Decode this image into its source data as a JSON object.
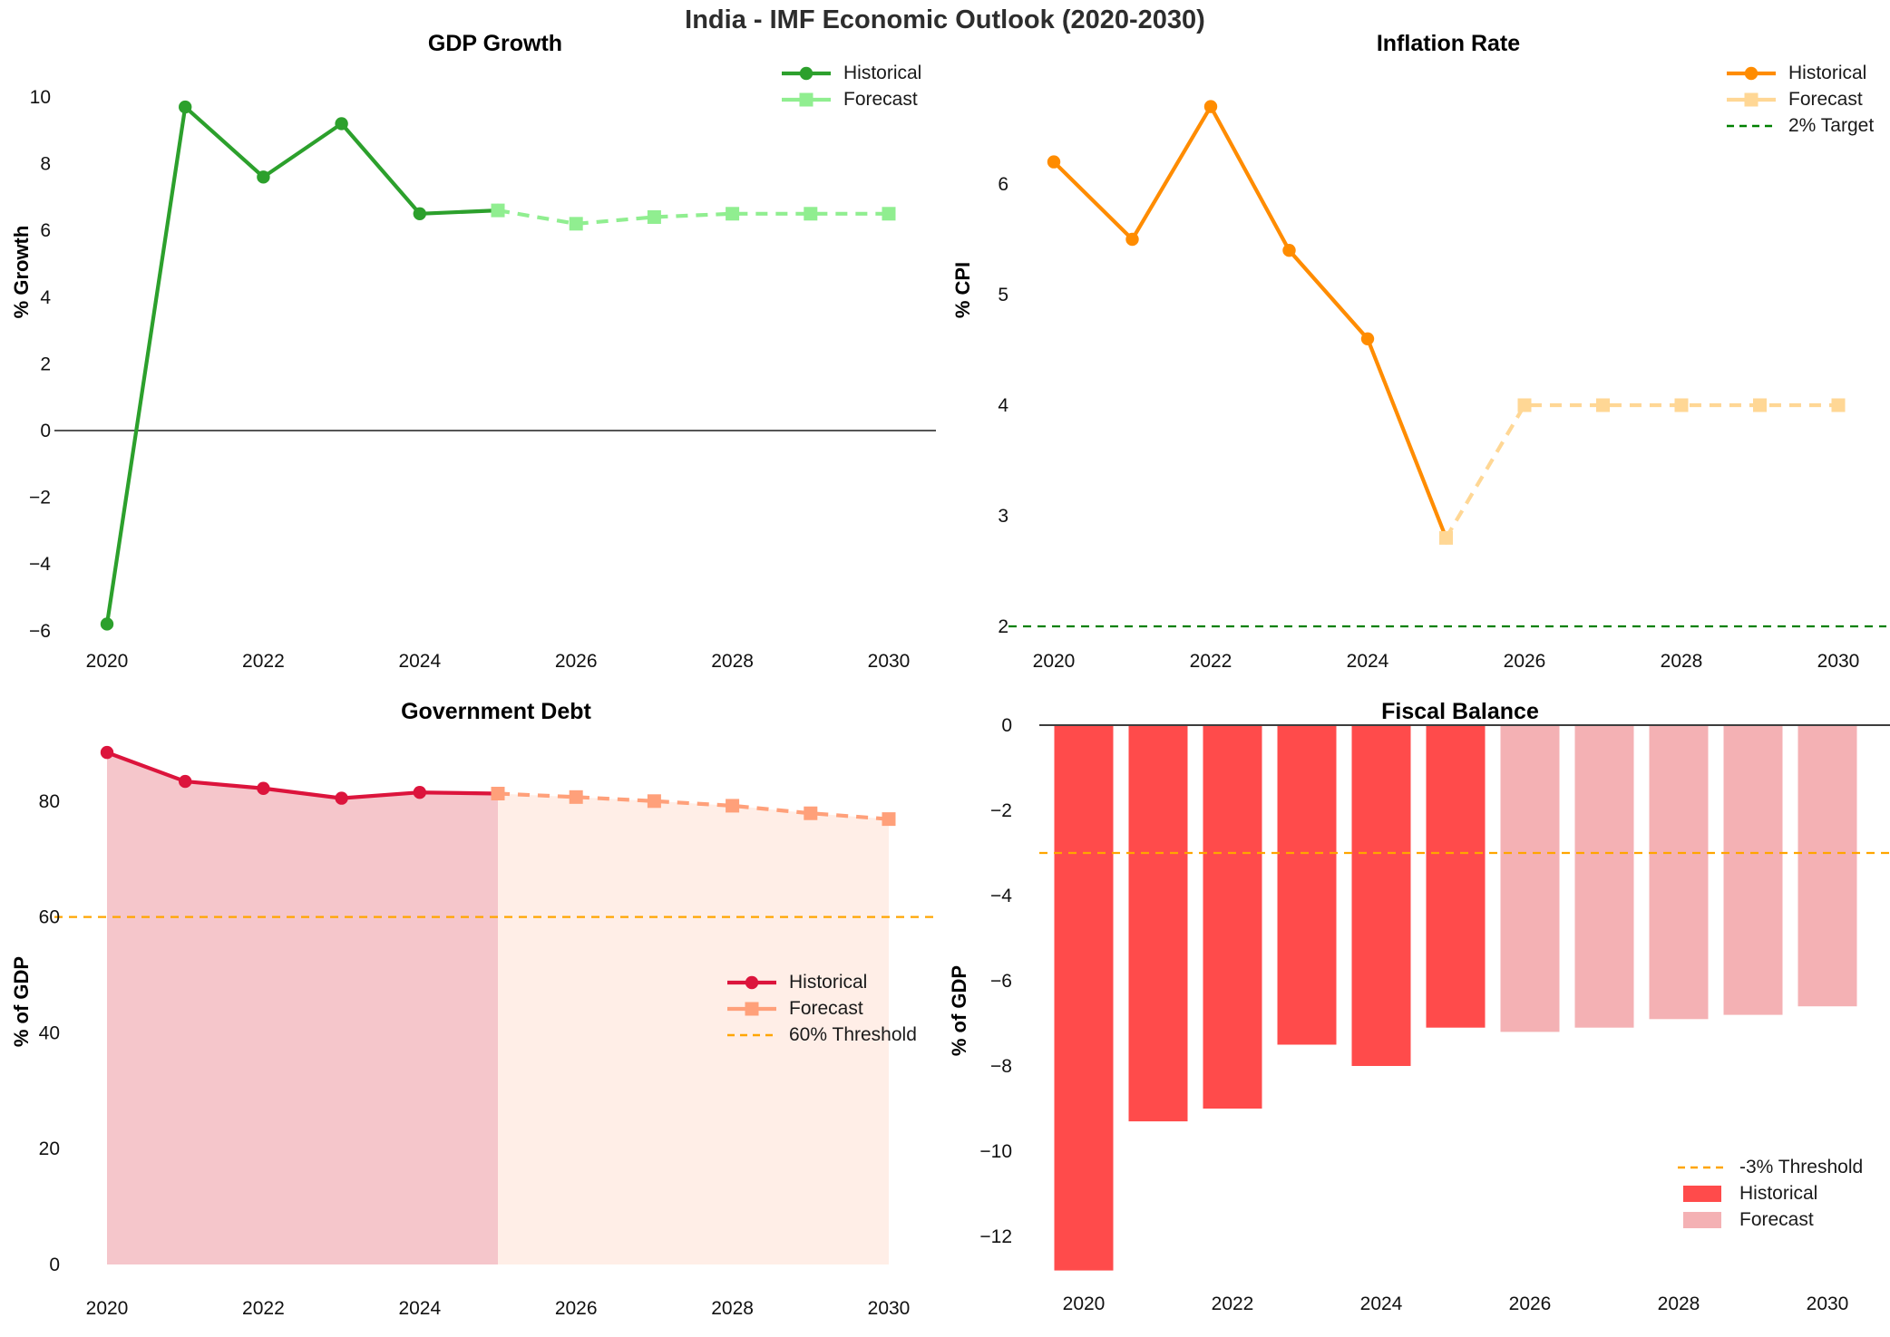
{
  "main_title": "India - IMF Economic Outlook (2020-2030)",
  "chart_data": [
    {
      "id": "gdp",
      "type": "line",
      "title": "GDP Growth",
      "ylabel": "% Growth",
      "x_ticks": [
        2020,
        2022,
        2024,
        2026,
        2028,
        2030
      ],
      "y_ticks": [
        10,
        8,
        6,
        4,
        2,
        0,
        -2,
        -4,
        -6
      ],
      "ylim": [
        -6.5,
        10.5
      ],
      "zero_line": 0,
      "series": [
        {
          "name": "Historical",
          "color": "#2CA02C",
          "dash": "solid",
          "marker": "circle",
          "years": [
            2020,
            2021,
            2022,
            2023,
            2024,
            2025
          ],
          "values": [
            -5.8,
            9.7,
            7.6,
            9.2,
            6.5,
            6.6
          ]
        },
        {
          "name": "Forecast",
          "color": "#90EE90",
          "dash": "dashed",
          "marker": "square",
          "years": [
            2025,
            2026,
            2027,
            2028,
            2029,
            2030
          ],
          "values": [
            6.6,
            6.2,
            6.4,
            6.5,
            6.5,
            6.5
          ]
        }
      ],
      "legend": [
        {
          "label": "Historical",
          "swatch": "line-circle",
          "color": "#2CA02C"
        },
        {
          "label": "Forecast",
          "swatch": "line-square",
          "color": "#90EE90"
        }
      ]
    },
    {
      "id": "inflation",
      "type": "line",
      "title": "Inflation Rate",
      "ylabel": "% CPI",
      "x_ticks": [
        2020,
        2022,
        2024,
        2026,
        2028,
        2030
      ],
      "y_ticks": [
        6,
        5,
        4,
        3,
        2
      ],
      "ylim": [
        1.85,
        6.95
      ],
      "ref_lines": [
        {
          "label": "2% Target",
          "value": 2,
          "color": "#008000"
        }
      ],
      "series": [
        {
          "name": "Historical",
          "color": "#FF8C00",
          "dash": "solid",
          "marker": "circle",
          "years": [
            2020,
            2021,
            2022,
            2023,
            2024,
            2025
          ],
          "values": [
            6.2,
            5.5,
            6.7,
            5.4,
            4.6,
            2.8
          ]
        },
        {
          "name": "Forecast",
          "color": "#FFD795",
          "dash": "dashed",
          "marker": "square",
          "years": [
            2025,
            2026,
            2027,
            2028,
            2029,
            2030
          ],
          "values": [
            2.8,
            4.0,
            4.0,
            4.0,
            4.0,
            4.0
          ]
        }
      ],
      "legend": [
        {
          "label": "Historical",
          "swatch": "line-circle",
          "color": "#FF8C00"
        },
        {
          "label": "Forecast",
          "swatch": "line-square",
          "color": "#FFD795"
        },
        {
          "label": "2% Target",
          "swatch": "dash",
          "color": "#008000"
        }
      ]
    },
    {
      "id": "debt",
      "type": "line",
      "title": "Government Debt",
      "ylabel": "% of GDP",
      "x_ticks": [
        2020,
        2022,
        2024,
        2026,
        2028,
        2030
      ],
      "y_ticks": [
        80,
        60,
        40,
        20,
        0
      ],
      "ylim": [
        0,
        92
      ],
      "ref_lines": [
        {
          "label": "60% Threshold",
          "value": 60,
          "color": "#FFA500"
        }
      ],
      "series": [
        {
          "name": "Historical",
          "color": "#DC143C",
          "dash": "solid",
          "marker": "circle",
          "fill": "rgba(215,35,55,0.26)",
          "years": [
            2020,
            2021,
            2022,
            2023,
            2024,
            2025
          ],
          "values": [
            88.4,
            83.4,
            82.2,
            80.5,
            81.5,
            81.3
          ]
        },
        {
          "name": "Forecast",
          "color": "#FFA07A",
          "dash": "dashed",
          "marker": "square",
          "fill": "rgba(255,160,122,0.18)",
          "years": [
            2025,
            2026,
            2027,
            2028,
            2029,
            2030
          ],
          "values": [
            81.3,
            80.7,
            80.0,
            79.2,
            77.9,
            76.9
          ]
        }
      ],
      "legend": [
        {
          "label": "Historical",
          "swatch": "line-circle",
          "color": "#DC143C"
        },
        {
          "label": "Forecast",
          "swatch": "line-square",
          "color": "#FFA07A"
        },
        {
          "label": "60% Threshold",
          "swatch": "dash",
          "color": "#FFA500"
        }
      ]
    },
    {
      "id": "fiscal",
      "type": "bar",
      "title": "Fiscal Balance",
      "ylabel": "% of GDP",
      "x_ticks": [
        2020,
        2022,
        2024,
        2026,
        2028,
        2030
      ],
      "y_ticks": [
        0,
        -2,
        -4,
        -6,
        -8,
        -10,
        -12
      ],
      "ylim": [
        -13.3,
        0.3
      ],
      "zero_line": 0,
      "ref_lines": [
        {
          "label": "-3% Threshold",
          "value": -3,
          "color": "#FFA500"
        }
      ],
      "series": [
        {
          "name": "Historical",
          "color": "#FF4B4B",
          "years": [
            2020,
            2021,
            2022,
            2023,
            2024,
            2025
          ],
          "values": [
            -12.8,
            -9.3,
            -9.0,
            -7.5,
            -8.0,
            -7.1
          ]
        },
        {
          "name": "Forecast",
          "color": "#F4B1B4",
          "years": [
            2026,
            2027,
            2028,
            2029,
            2030
          ],
          "values": [
            -7.2,
            -7.1,
            -6.9,
            -6.8,
            -6.6
          ]
        }
      ],
      "legend": [
        {
          "label": "-3% Threshold",
          "swatch": "dash",
          "color": "#FFA500"
        },
        {
          "label": "Historical",
          "swatch": "patch",
          "color": "#FF4B4B"
        },
        {
          "label": "Forecast",
          "swatch": "patch",
          "color": "#F4B1B4"
        }
      ]
    }
  ]
}
